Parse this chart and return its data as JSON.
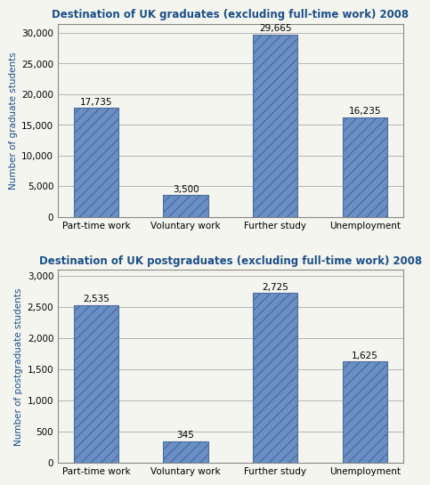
{
  "chart1": {
    "title": "Destination of UK graduates (excluding full-time work) 2008",
    "categories": [
      "Part-time work",
      "Voluntary work",
      "Further study",
      "Unemployment"
    ],
    "values": [
      17735,
      3500,
      29665,
      16235
    ],
    "labels": [
      "17,735",
      "3,500",
      "29,665",
      "16,235"
    ],
    "ylabel": "Number of graduate students",
    "ylim": [
      0,
      31500
    ],
    "yticks": [
      0,
      5000,
      10000,
      15000,
      20000,
      25000,
      30000
    ],
    "ytick_labels": [
      "0",
      "5,000",
      "10,000",
      "15,000",
      "20,000",
      "25,000",
      "30,000"
    ]
  },
  "chart2": {
    "title": "Destination of UK postgraduates (excluding full-time work) 2008",
    "categories": [
      "Part-time work",
      "Voluntary work",
      "Further study",
      "Unemployment"
    ],
    "values": [
      2535,
      345,
      2725,
      1625
    ],
    "labels": [
      "2,535",
      "345",
      "2,725",
      "1,625"
    ],
    "ylabel": "Number of postgraduate students",
    "ylim": [
      0,
      3100
    ],
    "yticks": [
      0,
      500,
      1000,
      1500,
      2000,
      2500,
      3000
    ],
    "ytick_labels": [
      "0",
      "500",
      "1,000",
      "1,500",
      "2,000",
      "2,500",
      "3,000"
    ]
  },
  "bar_color": "#6B8FC4",
  "bar_edgecolor": "#4a6fa0",
  "title_color": "#1a4f8a",
  "ylabel_color": "#1a4f8a",
  "label_fontsize": 7.5,
  "title_fontsize": 8.5,
  "ylabel_fontsize": 7.5,
  "xtick_fontsize": 7.5,
  "ytick_fontsize": 7.5,
  "background_color": "#f5f5f0",
  "grid_color": "#aaaaaa"
}
